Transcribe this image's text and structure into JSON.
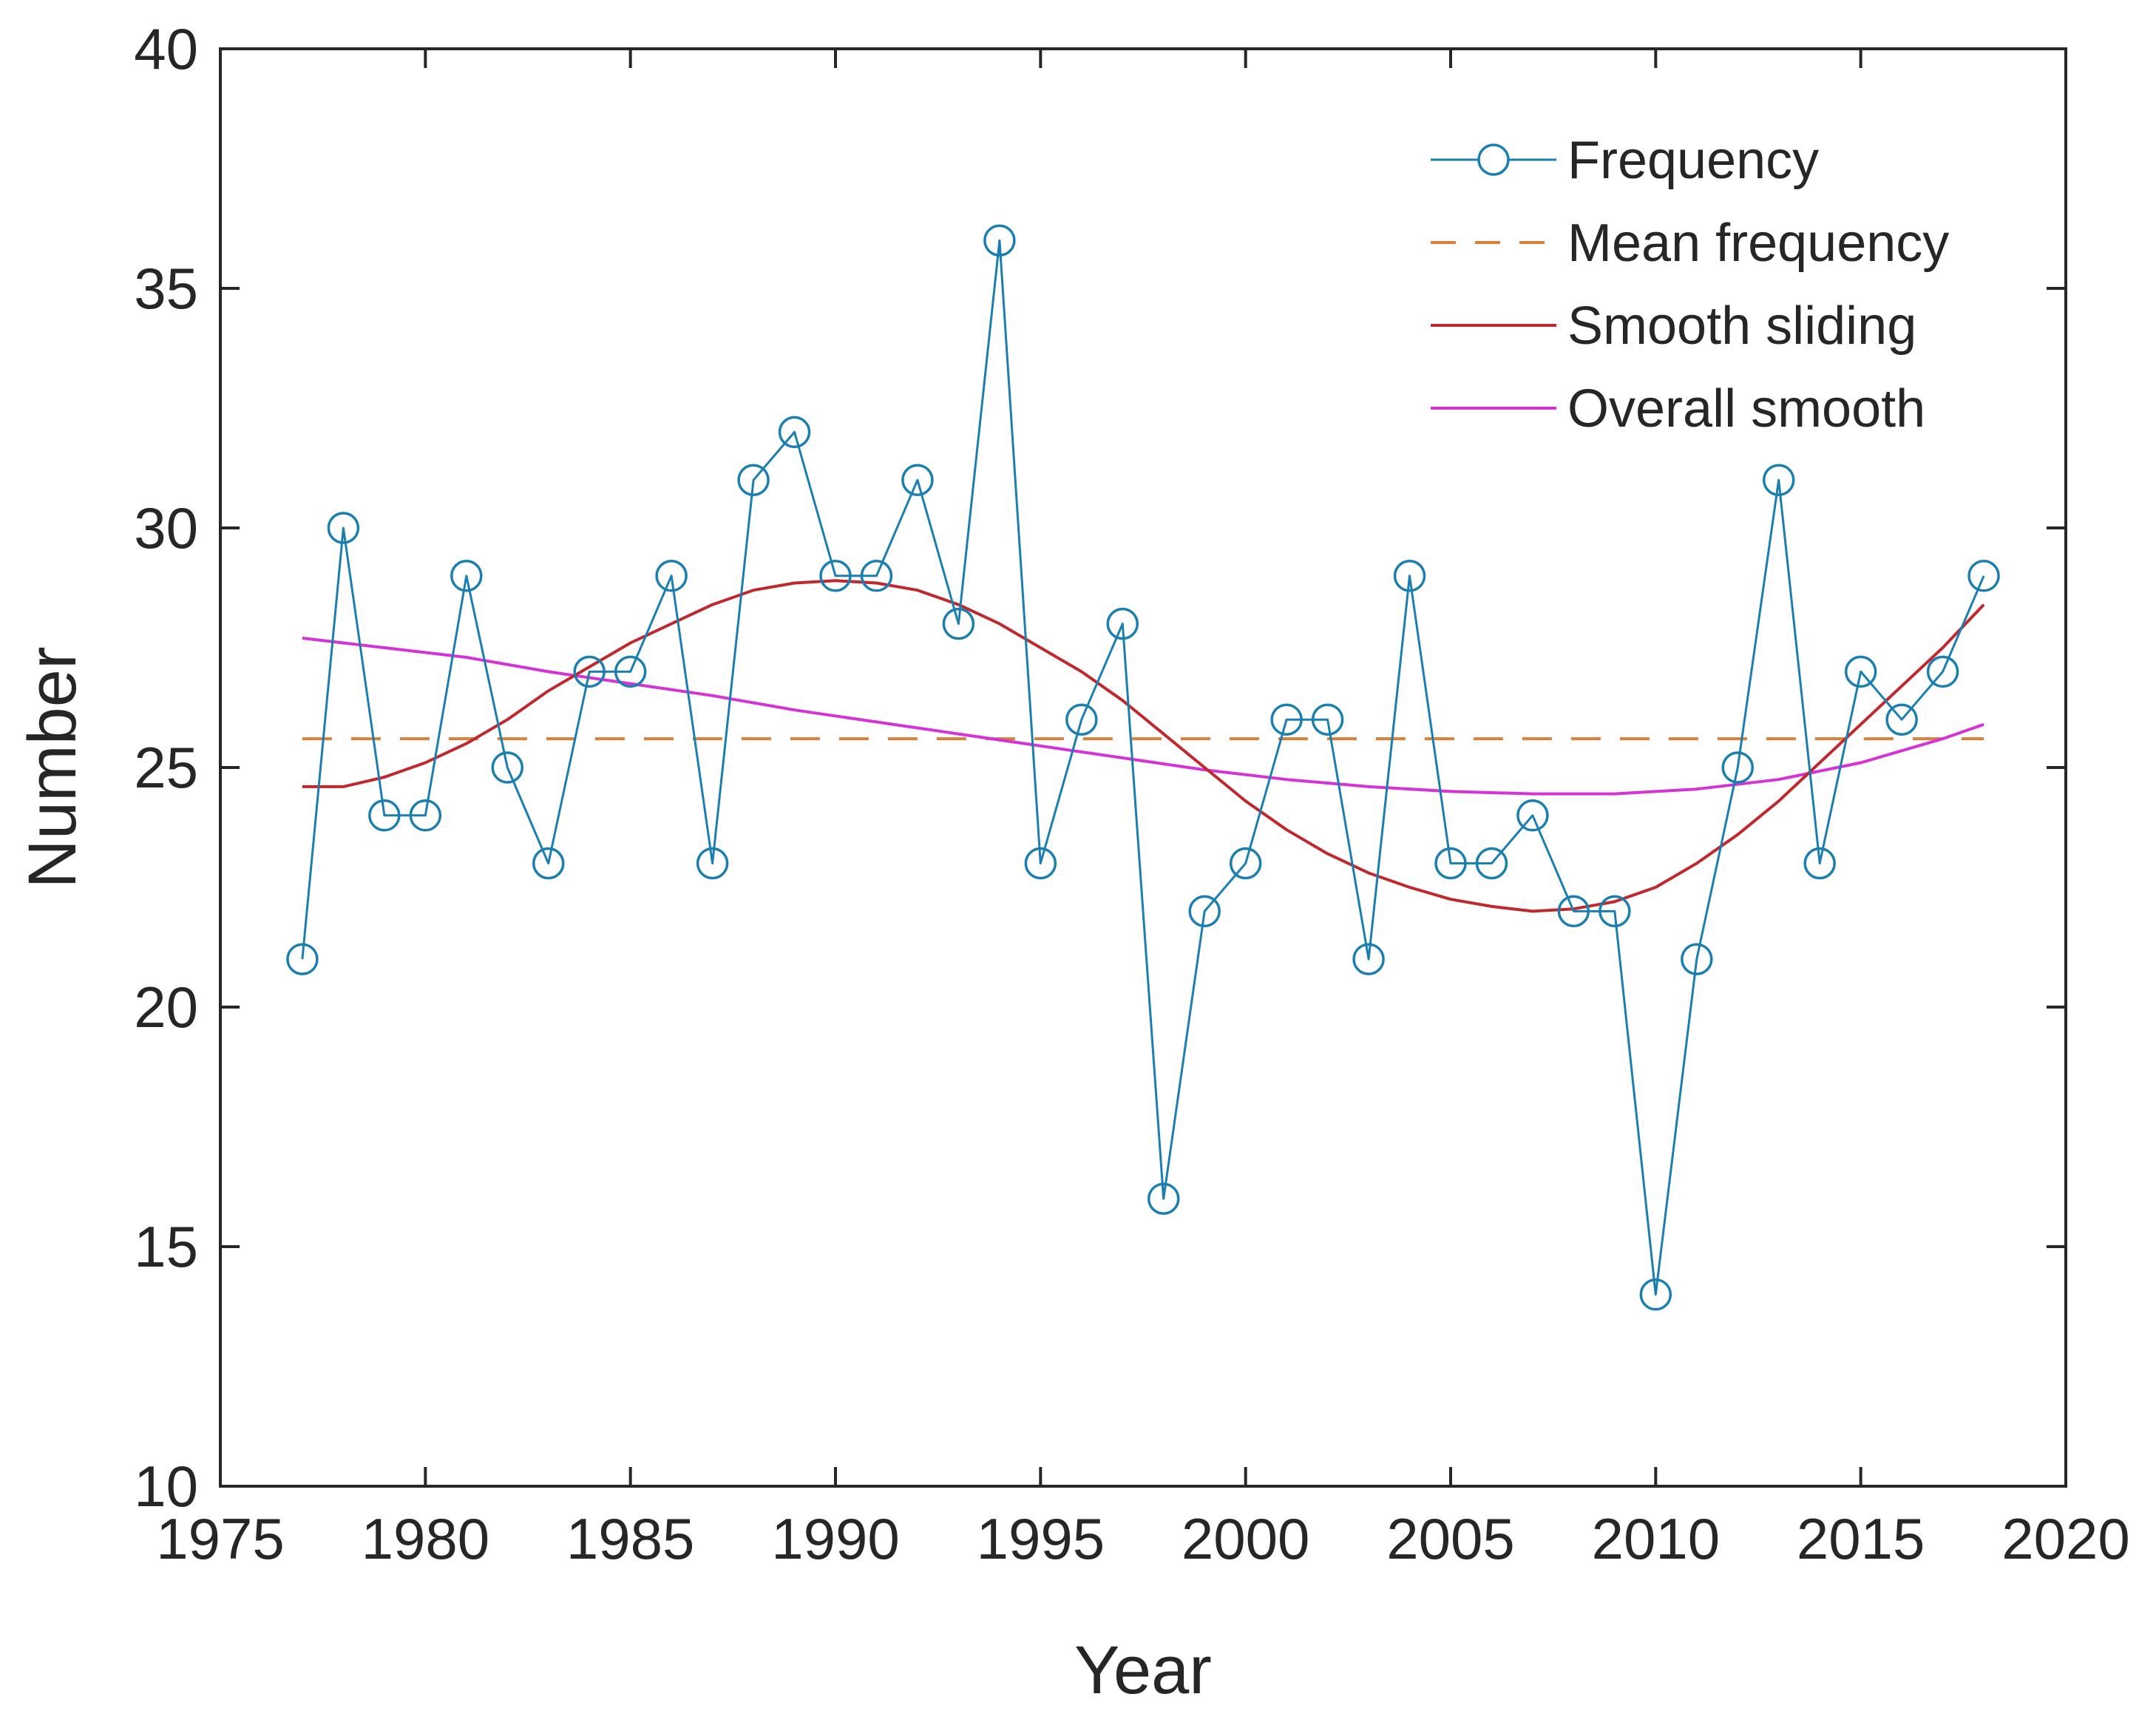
{
  "chart_data": {
    "type": "line",
    "xlabel": "Year",
    "ylabel": "Number",
    "xlim": [
      1975,
      2020
    ],
    "ylim": [
      10,
      40
    ],
    "xticks": [
      1975,
      1980,
      1985,
      1990,
      1995,
      2000,
      2005,
      2010,
      2015,
      2020
    ],
    "yticks": [
      10,
      15,
      20,
      25,
      30,
      35,
      40
    ],
    "grid": false,
    "legend_position": "top-right",
    "series": [
      {
        "name": "Frequency",
        "style": "solid-circle-markers",
        "color": "#1a7fb0",
        "x": [
          1977,
          1978,
          1979,
          1980,
          1981,
          1982,
          1983,
          1984,
          1985,
          1986,
          1987,
          1988,
          1989,
          1990,
          1991,
          1992,
          1993,
          1994,
          1995,
          1996,
          1997,
          1998,
          1999,
          2000,
          2001,
          2002,
          2003,
          2004,
          2005,
          2006,
          2007,
          2008,
          2009,
          2010,
          2011,
          2012,
          2013,
          2014,
          2015,
          2016,
          2017,
          2018
        ],
        "y": [
          21,
          30,
          24,
          24,
          29,
          25,
          23,
          27,
          27,
          29,
          23,
          31,
          32,
          29,
          29,
          31,
          28,
          36,
          23,
          26,
          28,
          16,
          22,
          23,
          26,
          26,
          21,
          29,
          23,
          23,
          24,
          22,
          22,
          14,
          21,
          25,
          31,
          23,
          27,
          26,
          27,
          29
        ]
      },
      {
        "name": "Mean frequency",
        "style": "dashed",
        "color": "#d9803a",
        "x": [
          1977,
          2018
        ],
        "y": [
          25.6,
          25.6
        ]
      },
      {
        "name": "Smooth sliding",
        "style": "solid",
        "color": "#c0282d",
        "x": [
          1977,
          1978,
          1979,
          1980,
          1981,
          1982,
          1983,
          1984,
          1985,
          1986,
          1987,
          1988,
          1989,
          1990,
          1991,
          1992,
          1993,
          1994,
          1995,
          1996,
          1997,
          1998,
          1999,
          2000,
          2001,
          2002,
          2003,
          2004,
          2005,
          2006,
          2007,
          2008,
          2009,
          2010,
          2011,
          2012,
          2013,
          2014,
          2015,
          2016,
          2017,
          2018
        ],
        "y": [
          24.6,
          24.6,
          24.8,
          25.1,
          25.5,
          26.0,
          26.6,
          27.1,
          27.6,
          28.0,
          28.4,
          28.7,
          28.85,
          28.9,
          28.85,
          28.7,
          28.4,
          28.0,
          27.5,
          27.0,
          26.4,
          25.7,
          25.0,
          24.3,
          23.7,
          23.2,
          22.8,
          22.5,
          22.25,
          22.1,
          22.0,
          22.05,
          22.2,
          22.5,
          23.0,
          23.6,
          24.3,
          25.1,
          25.9,
          26.7,
          27.5,
          28.4
        ]
      },
      {
        "name": "Overall smooth",
        "style": "solid",
        "color": "#d633d6",
        "x": [
          1977,
          1979,
          1981,
          1983,
          1985,
          1987,
          1989,
          1991,
          1993,
          1995,
          1997,
          1999,
          2001,
          2003,
          2005,
          2007,
          2009,
          2011,
          2013,
          2015,
          2017,
          2018
        ],
        "y": [
          27.7,
          27.5,
          27.3,
          27.0,
          26.75,
          26.5,
          26.2,
          25.95,
          25.7,
          25.45,
          25.2,
          24.95,
          24.75,
          24.6,
          24.5,
          24.45,
          24.45,
          24.55,
          24.75,
          25.1,
          25.6,
          25.9
        ]
      }
    ]
  }
}
